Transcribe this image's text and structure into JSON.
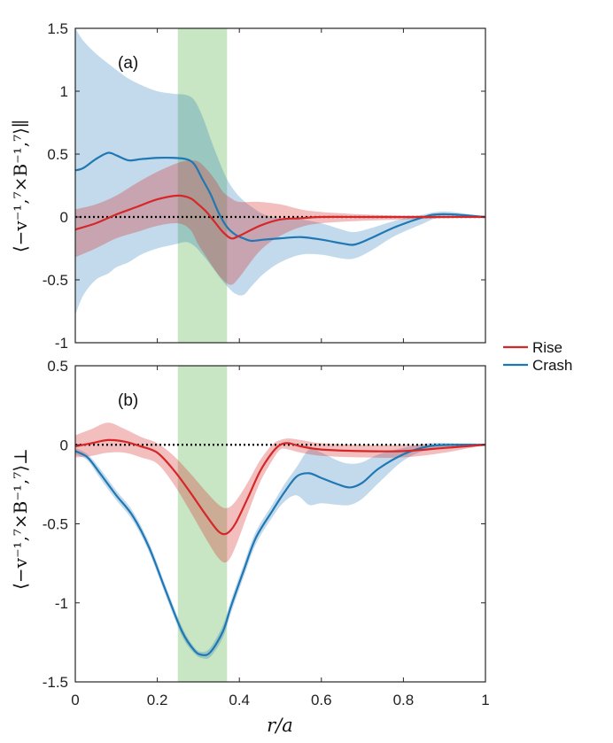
{
  "chart_data": [
    {
      "type": "line",
      "panel": "(a)",
      "ylabel": "⟨−v⁻¹,⁷×B⁻¹,⁷⟩∥",
      "xlabel": "",
      "xlim": [
        0,
        1
      ],
      "ylim": [
        -1,
        1.5
      ],
      "xticks": [
        0,
        0.2,
        0.4,
        0.6,
        0.8,
        1
      ],
      "xtick_labels": [
        "0",
        "0.2",
        "0.4",
        "0.6",
        "0.8",
        "1"
      ],
      "yticks": [
        -1,
        -0.5,
        0,
        0.5,
        1,
        1.5
      ],
      "ytick_labels": [
        "-1",
        "-0.5",
        "0",
        "0.5",
        "1",
        "1.5"
      ],
      "zero_line": true,
      "highlight_band": {
        "x0": 0.25,
        "x1": 0.37,
        "color": "#b5deb0"
      },
      "series": [
        {
          "name": "Rise",
          "color": "#d62728",
          "x": [
            0,
            0.05,
            0.1,
            0.15,
            0.2,
            0.25,
            0.28,
            0.3,
            0.32,
            0.34,
            0.36,
            0.38,
            0.4,
            0.45,
            0.5,
            0.55,
            0.6,
            0.7,
            0.8,
            0.9,
            1.0
          ],
          "y": [
            -0.1,
            -0.05,
            0.02,
            0.08,
            0.14,
            0.17,
            0.15,
            0.1,
            0.04,
            -0.04,
            -0.12,
            -0.17,
            -0.15,
            -0.07,
            -0.02,
            -0.01,
            0.0,
            0.0,
            0.0,
            0.0,
            0.0
          ],
          "upper": [
            0.06,
            0.1,
            0.17,
            0.27,
            0.36,
            0.43,
            0.45,
            0.44,
            0.38,
            0.3,
            0.2,
            0.15,
            0.12,
            0.12,
            0.1,
            0.06,
            0.04,
            0.02,
            0.01,
            0.01,
            0.0
          ],
          "lower": [
            -0.32,
            -0.25,
            -0.17,
            -0.12,
            -0.07,
            -0.05,
            -0.1,
            -0.22,
            -0.32,
            -0.42,
            -0.5,
            -0.54,
            -0.48,
            -0.27,
            -0.15,
            -0.08,
            -0.05,
            -0.03,
            -0.02,
            -0.01,
            0.0
          ]
        },
        {
          "name": "Crash",
          "color": "#1f77b4",
          "x": [
            0,
            0.02,
            0.05,
            0.08,
            0.1,
            0.13,
            0.16,
            0.2,
            0.24,
            0.27,
            0.29,
            0.31,
            0.33,
            0.35,
            0.37,
            0.39,
            0.41,
            0.43,
            0.46,
            0.5,
            0.55,
            0.6,
            0.65,
            0.68,
            0.72,
            0.78,
            0.85,
            0.88,
            0.92,
            1.0
          ],
          "y": [
            0.37,
            0.39,
            0.46,
            0.51,
            0.49,
            0.45,
            0.46,
            0.47,
            0.47,
            0.46,
            0.42,
            0.3,
            0.18,
            0.03,
            -0.08,
            -0.14,
            -0.17,
            -0.19,
            -0.18,
            -0.17,
            -0.16,
            -0.18,
            -0.21,
            -0.22,
            -0.17,
            -0.08,
            0.0,
            0.02,
            0.02,
            0.0
          ],
          "upper": [
            1.5,
            1.4,
            1.3,
            1.22,
            1.17,
            1.1,
            1.05,
            1.0,
            0.98,
            0.97,
            0.93,
            0.8,
            0.62,
            0.45,
            0.3,
            0.2,
            0.13,
            0.08,
            0.02,
            -0.01,
            -0.02,
            -0.05,
            -0.1,
            -0.12,
            -0.09,
            -0.03,
            0.02,
            0.04,
            0.04,
            0.0
          ],
          "lower": [
            -0.78,
            -0.62,
            -0.5,
            -0.45,
            -0.4,
            -0.36,
            -0.3,
            -0.25,
            -0.22,
            -0.2,
            -0.23,
            -0.3,
            -0.38,
            -0.47,
            -0.55,
            -0.61,
            -0.62,
            -0.55,
            -0.45,
            -0.36,
            -0.3,
            -0.3,
            -0.33,
            -0.33,
            -0.27,
            -0.15,
            -0.05,
            -0.01,
            0.0,
            0.0
          ]
        }
      ]
    },
    {
      "type": "line",
      "panel": "(b)",
      "ylabel": "⟨−v⁻¹,⁷×B⁻¹,⁷⟩⊥",
      "xlabel": "r/a",
      "xlim": [
        0,
        1
      ],
      "ylim": [
        -1.5,
        0.5
      ],
      "xticks": [
        0,
        0.2,
        0.4,
        0.6,
        0.8,
        1
      ],
      "xtick_labels": [
        "0",
        "0.2",
        "0.4",
        "0.6",
        "0.8",
        "1"
      ],
      "yticks": [
        -1.5,
        -1,
        -0.5,
        0,
        0.5
      ],
      "ytick_labels": [
        "-1.5",
        "-1",
        "-0.5",
        "0",
        "0.5"
      ],
      "zero_line": true,
      "highlight_band": {
        "x0": 0.25,
        "x1": 0.37,
        "color": "#b5deb0"
      },
      "series": [
        {
          "name": "Rise",
          "color": "#d62728",
          "x": [
            0,
            0.04,
            0.08,
            0.12,
            0.16,
            0.2,
            0.24,
            0.28,
            0.32,
            0.35,
            0.37,
            0.39,
            0.42,
            0.45,
            0.48,
            0.5,
            0.52,
            0.55,
            0.6,
            0.7,
            0.8,
            0.9,
            1.0
          ],
          "y": [
            -0.01,
            0.01,
            0.03,
            0.02,
            -0.01,
            -0.05,
            -0.16,
            -0.3,
            -0.45,
            -0.55,
            -0.56,
            -0.5,
            -0.34,
            -0.17,
            -0.05,
            0.0,
            0.01,
            -0.01,
            -0.03,
            -0.04,
            -0.04,
            -0.02,
            0.0
          ],
          "upper": [
            0.06,
            0.1,
            0.14,
            0.1,
            0.05,
            0.01,
            -0.07,
            -0.18,
            -0.3,
            -0.38,
            -0.4,
            -0.36,
            -0.24,
            -0.1,
            0.0,
            0.03,
            0.04,
            0.03,
            0.01,
            0.0,
            0.0,
            0.0,
            0.0
          ],
          "lower": [
            -0.08,
            -0.07,
            -0.05,
            -0.05,
            -0.08,
            -0.12,
            -0.25,
            -0.42,
            -0.6,
            -0.72,
            -0.74,
            -0.65,
            -0.44,
            -0.24,
            -0.1,
            -0.03,
            -0.03,
            -0.05,
            -0.07,
            -0.08,
            -0.08,
            -0.05,
            0.0
          ]
        },
        {
          "name": "Crash",
          "color": "#1f77b4",
          "x": [
            0,
            0.03,
            0.06,
            0.1,
            0.14,
            0.18,
            0.22,
            0.26,
            0.29,
            0.31,
            0.33,
            0.36,
            0.38,
            0.41,
            0.44,
            0.48,
            0.51,
            0.54,
            0.57,
            0.6,
            0.64,
            0.67,
            0.7,
            0.74,
            0.8,
            0.86,
            0.92,
            1.0
          ],
          "y": [
            -0.04,
            -0.08,
            -0.18,
            -0.32,
            -0.45,
            -0.65,
            -0.92,
            -1.18,
            -1.3,
            -1.33,
            -1.31,
            -1.18,
            -1.02,
            -0.8,
            -0.59,
            -0.42,
            -0.3,
            -0.2,
            -0.18,
            -0.21,
            -0.25,
            -0.27,
            -0.24,
            -0.15,
            -0.06,
            -0.01,
            0.0,
            0.0
          ],
          "upper": [
            -0.02,
            -0.06,
            -0.15,
            -0.29,
            -0.42,
            -0.62,
            -0.89,
            -1.15,
            -1.28,
            -1.31,
            -1.28,
            -1.14,
            -0.98,
            -0.76,
            -0.55,
            -0.38,
            -0.25,
            -0.14,
            -0.03,
            -0.05,
            -0.1,
            -0.12,
            -0.11,
            -0.06,
            -0.02,
            0.01,
            0.01,
            0.0
          ],
          "lower": [
            -0.06,
            -0.1,
            -0.21,
            -0.35,
            -0.48,
            -0.68,
            -0.95,
            -1.21,
            -1.32,
            -1.35,
            -1.34,
            -1.22,
            -1.06,
            -0.84,
            -0.63,
            -0.46,
            -0.36,
            -0.32,
            -0.38,
            -0.37,
            -0.38,
            -0.38,
            -0.34,
            -0.24,
            -0.1,
            -0.03,
            -0.01,
            0.0
          ]
        }
      ]
    }
  ],
  "legend": {
    "items": [
      {
        "name": "Rise",
        "color": "#d62728"
      },
      {
        "name": "Crash",
        "color": "#1f77b4"
      }
    ],
    "placement": "right-middle"
  },
  "labels": {
    "panel_a": "(a)",
    "panel_b": "(b)",
    "xlabel": "r/a"
  }
}
